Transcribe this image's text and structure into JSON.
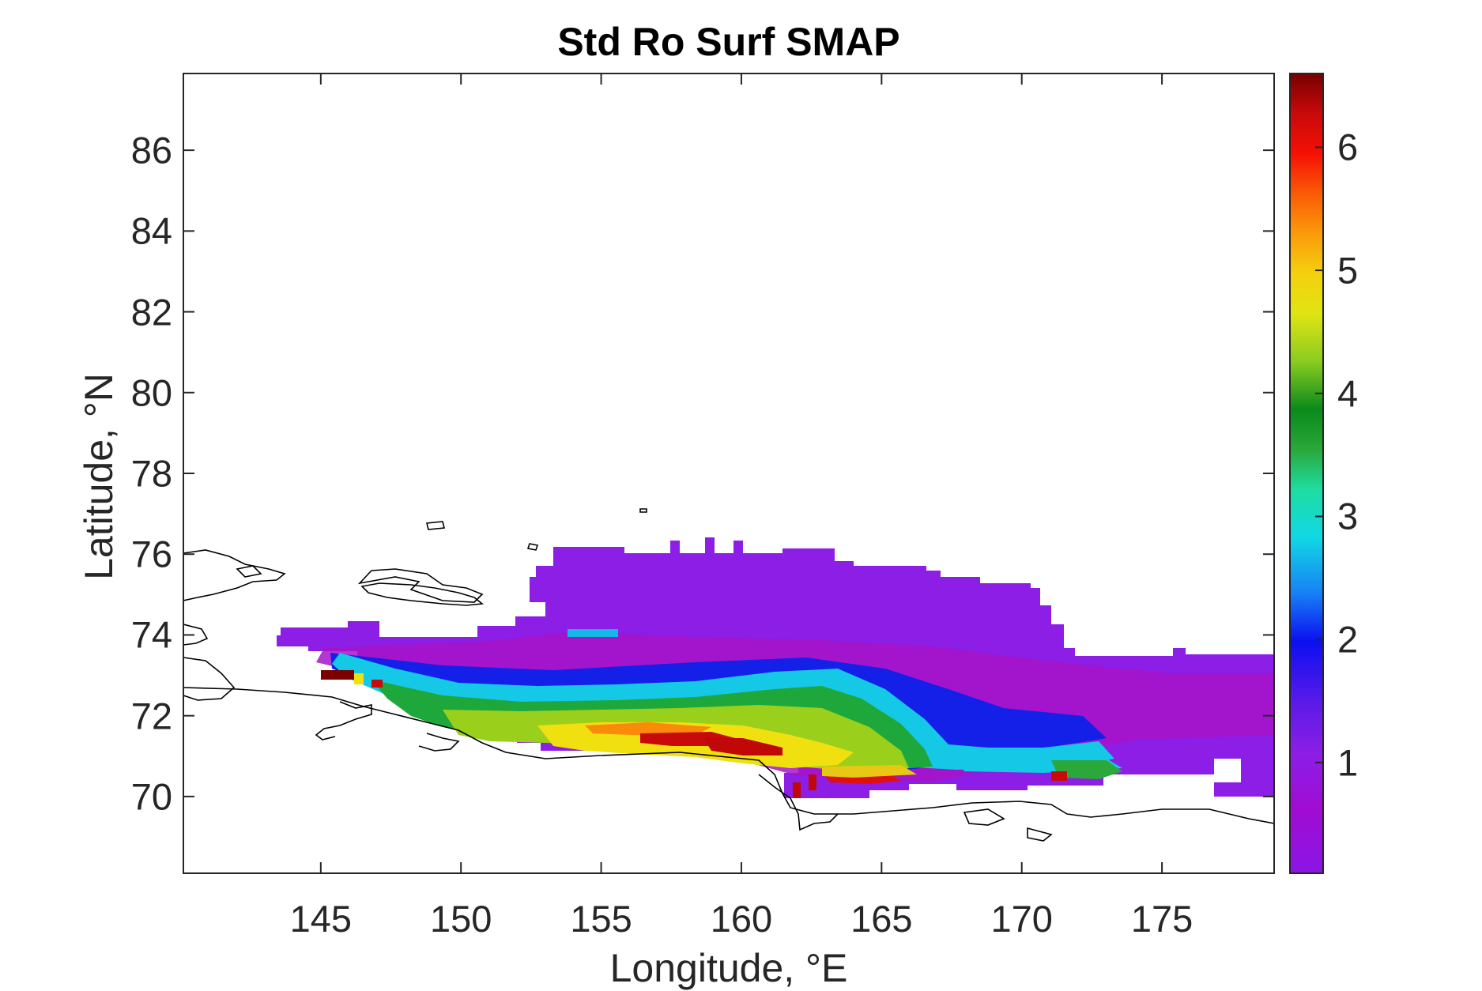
{
  "chart_data": {
    "type": "heatmap",
    "title": "Std Ro Surf SMAP",
    "xlabel": "Longitude, °E",
    "ylabel": "Latitude, °N",
    "xlim": [
      140.1,
      179.0
    ],
    "ylim": [
      68.1,
      87.9
    ],
    "xticks": [
      "145",
      "150",
      "155",
      "160",
      "165",
      "170",
      "175"
    ],
    "yticks": [
      "70",
      "72",
      "74",
      "76",
      "78",
      "80",
      "82",
      "84",
      "86"
    ],
    "colorbar": {
      "range": [
        0.1,
        6.6
      ],
      "ticks": [
        "1",
        "2",
        "3",
        "4",
        "5",
        "6"
      ],
      "colormap": [
        "#8a16e6",
        "#a00cd2",
        "#8c1ee6",
        "#5e1ae8",
        "#0b10f0",
        "#1780f5",
        "#11d8e4",
        "#1edca0",
        "#2aa83a",
        "#0a8a1a",
        "#8acc20",
        "#e0e412",
        "#f4d00e",
        "#fa9a0a",
        "#fa5a06",
        "#f51005",
        "#c80a0a",
        "#780000"
      ]
    },
    "regions": [
      {
        "name": "",
        "lon_range": [
          153.0,
          168.5
        ],
        "lat_range": [
          74.1,
          76.2
        ],
        "value": 0.6
      },
      {
        "name": "",
        "lon_range": [
          143.5,
          179.0
        ],
        "lat_range": [
          70.2,
          74.1
        ],
        "value": 1.0
      },
      {
        "name": "",
        "lon_range": [
          145.5,
          167.0
        ],
        "lat_range": [
          72.7,
          73.6
        ],
        "value": 2.0
      },
      {
        "name": "",
        "lon_range": [
          147.5,
          168.0
        ],
        "lat_range": [
          71.8,
          72.7
        ],
        "value": 3.0
      },
      {
        "name": "",
        "lon_range": [
          151.0,
          167.0
        ],
        "lat_range": [
          71.3,
          72.3
        ],
        "value": 4.2
      },
      {
        "name": "",
        "lon_range": [
          153.0,
          165.0
        ],
        "lat_range": [
          71.0,
          71.8
        ],
        "value": 5.0
      },
      {
        "name": "",
        "lon_range": [
          162.5,
          167.0
        ],
        "lat_range": [
          70.3,
          71.0
        ],
        "value": 5.2
      },
      {
        "name": "",
        "lon_range": [
          167.0,
          174.0
        ],
        "lat_range": [
          70.7,
          71.3
        ],
        "value": 2.8
      },
      {
        "name": "",
        "lon_range": [
          144.0,
          146.5
        ],
        "lat_range": [
          72.9,
          73.3
        ],
        "value": 6.5
      }
    ]
  }
}
